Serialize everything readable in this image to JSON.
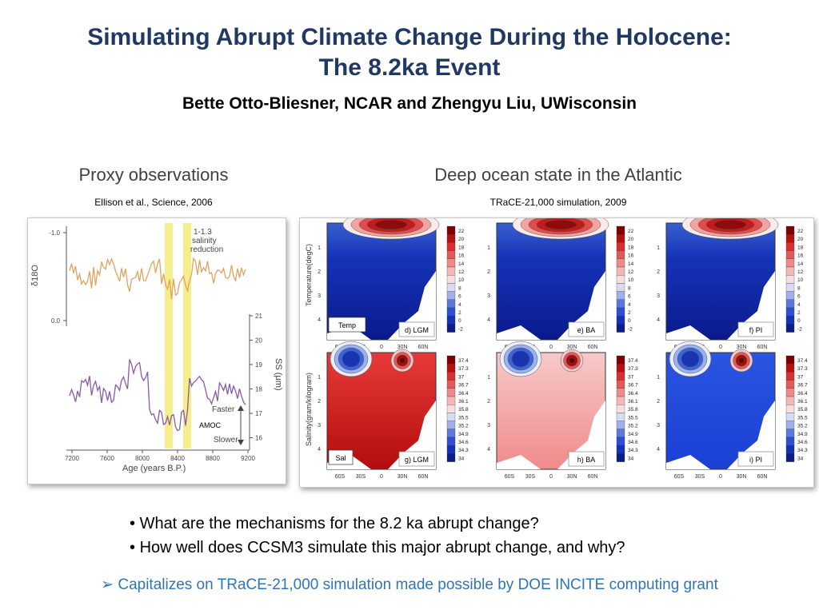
{
  "slide": {
    "title_line1": "Simulating Abrupt Climate Change During the Holocene:",
    "title_line2": "The 8.2ka Event",
    "subtitle": "Bette Otto-Bliesner, NCAR and Zhengyu Liu, UWisconsin"
  },
  "left": {
    "heading": "Proxy observations",
    "citation": "Ellison et al., Science, 2006",
    "figure": {
      "annotation": [
        "1-1.3",
        "salinity",
        "reduction"
      ],
      "left_axis_ticks": [
        "-1.0",
        "0.0"
      ],
      "left_axis_label": "δ18O",
      "right_axis_ticks": [
        "21",
        "20",
        "19",
        "18",
        "17",
        "16"
      ],
      "right_axis_label": "SS (μm)",
      "x_ticks": [
        "7200",
        "7600",
        "8000",
        "8400",
        "8800",
        "9200"
      ],
      "x_label": "Age (years B.P.)",
      "faster": "Faster",
      "slower": "Slower",
      "amoc": "AMOC"
    }
  },
  "right": {
    "heading": "Deep ocean state in the Atlantic",
    "citation": "TRaCE-21,000 simulation, 2009",
    "figure": {
      "temp_ylabel": "Temperature(degC)",
      "sal_ylabel": "Salinity(gram/kilogram)",
      "temp_box": "Temp",
      "sal_box": "Sal",
      "depth_ticks": [
        "1",
        "2",
        "3",
        "4"
      ],
      "lat_ticks": [
        "60S",
        "30S",
        "0",
        "30N",
        "60N"
      ],
      "temp_panels": [
        "d) LGM",
        "e) BA",
        "f) PI"
      ],
      "sal_panels": [
        "g) LGM",
        "h) BA",
        "i) PI"
      ],
      "temp_scale": [
        "22",
        "20",
        "18",
        "16",
        "14",
        "12",
        "10",
        "8",
        "6",
        "4",
        "2",
        "0",
        "-2"
      ],
      "sal_scale": [
        "37.4",
        "37.3",
        "37",
        "36.7",
        "36.4",
        "36.1",
        "35.8",
        "35.5",
        "35.2",
        "34.9",
        "34.6",
        "34.3",
        "34"
      ]
    }
  },
  "bullets": [
    "What are the mechanisms for the 8.2 ka abrupt change?",
    "How well does CCSM3 simulate this major abrupt change, and why?"
  ],
  "closing": "Capitalizes on TRaCE-21,000 simulation made possible by DOE INCITE computing grant",
  "colors": {
    "title": "#1f3864",
    "closing": "#2e75b6",
    "proxy_orange": "#e3a25f",
    "proxy_purple": "#8a5aa6",
    "highlight": "#f5ee8c"
  }
}
